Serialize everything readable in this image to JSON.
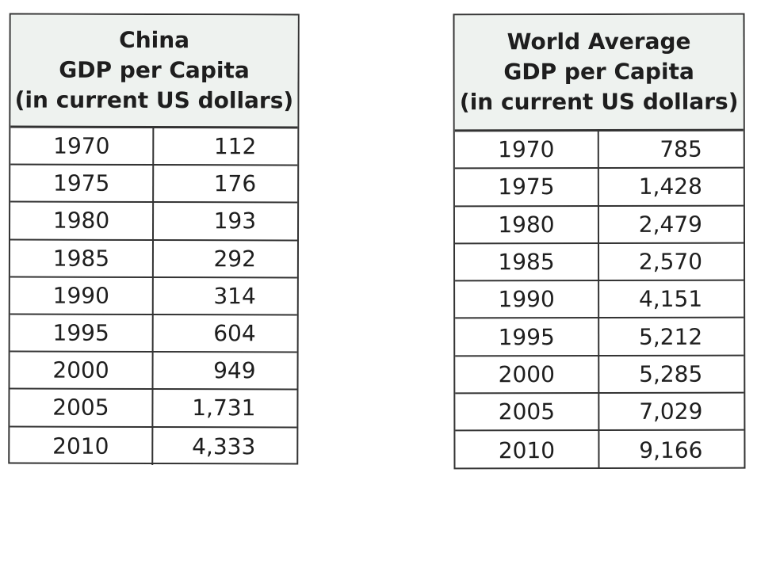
{
  "china_table": {
    "title_line1": "China",
    "title_line2": "GDP per Capita",
    "title_line3": "(in current US dollars)",
    "rows": [
      {
        "year": "1970",
        "value": "112"
      },
      {
        "year": "1975",
        "value": "176"
      },
      {
        "year": "1980",
        "value": "193"
      },
      {
        "year": "1985",
        "value": "292"
      },
      {
        "year": "1990",
        "value": "314"
      },
      {
        "year": "1995",
        "value": "604"
      },
      {
        "year": "2000",
        "value": "949"
      },
      {
        "year": "2005",
        "value": "1,731"
      },
      {
        "year": "2010",
        "value": "4,333"
      }
    ]
  },
  "world_table": {
    "title_line1": "World Average",
    "title_line2": "GDP per Capita",
    "title_line3": "(in current US dollars)",
    "rows": [
      {
        "year": "1970",
        "value": "785"
      },
      {
        "year": "1975",
        "value": "1,428"
      },
      {
        "year": "1980",
        "value": "2,479"
      },
      {
        "year": "1985",
        "value": "2,570"
      },
      {
        "year": "1990",
        "value": "4,151"
      },
      {
        "year": "1995",
        "value": "5,212"
      },
      {
        "year": "2000",
        "value": "5,285"
      },
      {
        "year": "2005",
        "value": "7,029"
      },
      {
        "year": "2010",
        "value": "9,166"
      }
    ]
  }
}
